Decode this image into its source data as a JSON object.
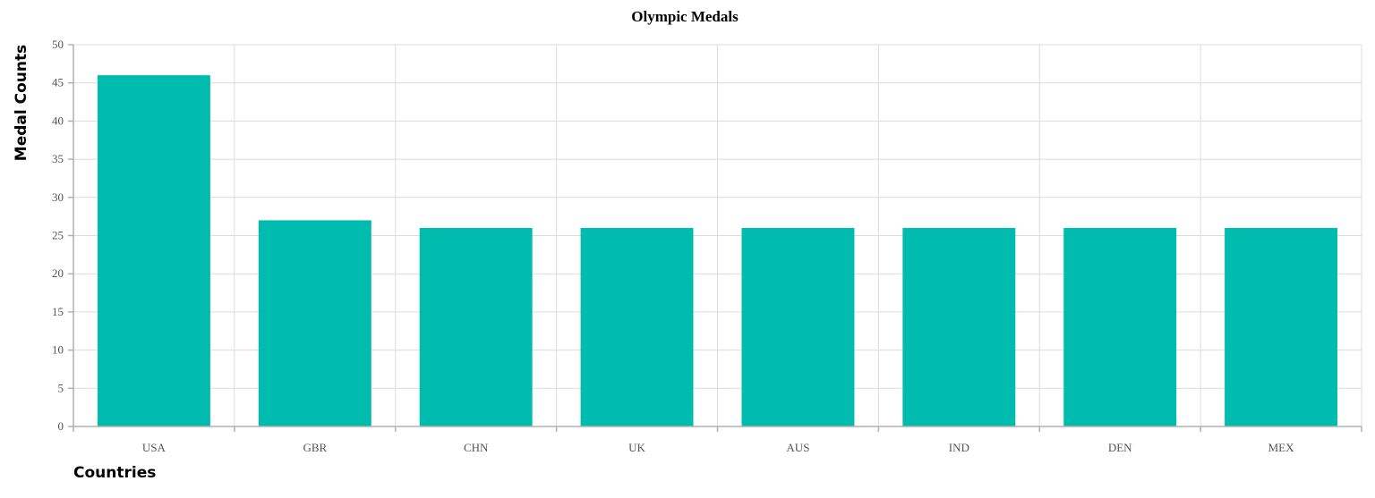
{
  "chart_data": {
    "type": "bar",
    "title": "Olympic Medals",
    "xlabel": "Countries",
    "ylabel": "Medal Counts",
    "categories": [
      "USA",
      "GBR",
      "CHN",
      "UK",
      "AUS",
      "IND",
      "DEN",
      "MEX"
    ],
    "values": [
      46,
      27,
      26,
      26,
      26,
      26,
      26,
      26
    ],
    "ylim": [
      0,
      50
    ],
    "yticks": [
      0,
      5,
      10,
      15,
      20,
      25,
      30,
      35,
      40,
      45,
      50
    ],
    "grid": true,
    "legend": "none",
    "bar_color": "#00bcae"
  }
}
